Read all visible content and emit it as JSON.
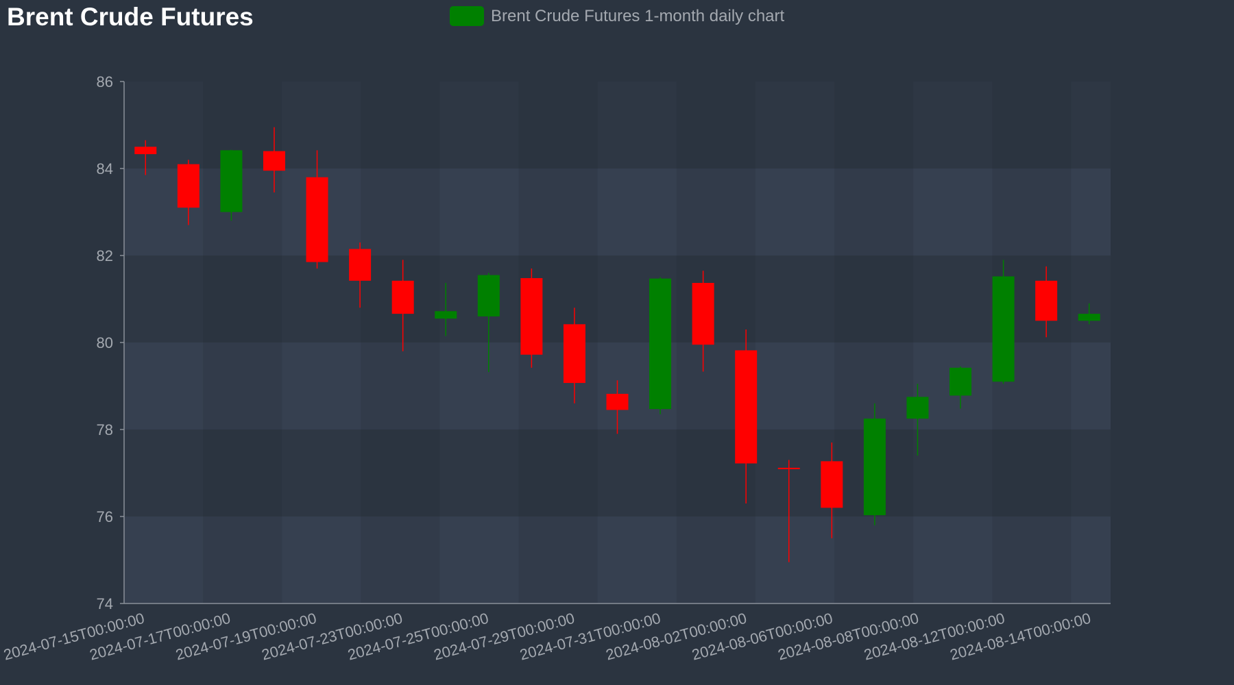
{
  "title": "Brent Crude Futures",
  "legend": {
    "label": "Brent Crude Futures 1-month daily chart",
    "color": "#008000"
  },
  "colors": {
    "background": "#2b3440",
    "up": "#008000",
    "down": "#ff0000",
    "axis_text": "#a4a9b0",
    "axis_line": "#8a9099"
  },
  "chart_data": {
    "type": "candlestick",
    "title": "Brent Crude Futures",
    "series": [
      {
        "name": "Brent Crude Futures 1-month daily chart",
        "points": [
          {
            "date": "2024-07-15",
            "open": 84.5,
            "high": 84.65,
            "low": 83.85,
            "close": 84.33
          },
          {
            "date": "2024-07-16",
            "open": 84.1,
            "high": 84.2,
            "low": 82.7,
            "close": 83.1
          },
          {
            "date": "2024-07-17",
            "open": 83.0,
            "high": 84.43,
            "low": 82.8,
            "close": 84.42
          },
          {
            "date": "2024-07-18",
            "open": 84.4,
            "high": 84.95,
            "low": 83.45,
            "close": 83.95
          },
          {
            "date": "2024-07-19",
            "open": 83.8,
            "high": 84.42,
            "low": 81.7,
            "close": 81.85
          },
          {
            "date": "2024-07-22",
            "open": 82.15,
            "high": 82.3,
            "low": 80.8,
            "close": 81.42
          },
          {
            "date": "2024-07-23",
            "open": 81.42,
            "high": 81.9,
            "low": 79.8,
            "close": 80.66
          },
          {
            "date": "2024-07-24",
            "open": 80.55,
            "high": 81.37,
            "low": 80.15,
            "close": 80.72
          },
          {
            "date": "2024-07-25",
            "open": 80.6,
            "high": 81.6,
            "low": 79.32,
            "close": 81.55
          },
          {
            "date": "2024-07-26",
            "open": 81.48,
            "high": 81.7,
            "low": 79.42,
            "close": 79.72
          },
          {
            "date": "2024-07-29",
            "open": 80.42,
            "high": 80.8,
            "low": 78.6,
            "close": 79.07
          },
          {
            "date": "2024-07-30",
            "open": 78.82,
            "high": 79.13,
            "low": 77.9,
            "close": 78.45
          },
          {
            "date": "2024-07-31",
            "open": 78.47,
            "high": 81.5,
            "low": 78.35,
            "close": 81.47
          },
          {
            "date": "2024-08-01",
            "open": 81.37,
            "high": 81.65,
            "low": 79.33,
            "close": 79.95
          },
          {
            "date": "2024-08-02",
            "open": 79.82,
            "high": 80.3,
            "low": 76.3,
            "close": 77.22
          },
          {
            "date": "2024-08-05",
            "open": 77.12,
            "high": 77.3,
            "low": 74.95,
            "close": 77.1
          },
          {
            "date": "2024-08-06",
            "open": 77.27,
            "high": 77.7,
            "low": 75.5,
            "close": 76.2
          },
          {
            "date": "2024-08-07",
            "open": 76.03,
            "high": 78.6,
            "low": 75.8,
            "close": 78.25
          },
          {
            "date": "2024-08-08",
            "open": 78.25,
            "high": 79.05,
            "low": 77.4,
            "close": 78.75
          },
          {
            "date": "2024-08-09",
            "open": 78.78,
            "high": 79.45,
            "low": 78.48,
            "close": 79.42
          },
          {
            "date": "2024-08-12",
            "open": 79.1,
            "high": 81.9,
            "low": 79.05,
            "close": 81.52
          },
          {
            "date": "2024-08-13",
            "open": 81.42,
            "high": 81.75,
            "low": 80.12,
            "close": 80.5
          },
          {
            "date": "2024-08-14",
            "open": 80.5,
            "high": 80.9,
            "low": 80.42,
            "close": 80.66
          }
        ]
      }
    ],
    "x_tick_labels": [
      "2024-07-15T00:00:00",
      "2024-07-17T00:00:00",
      "2024-07-19T00:00:00",
      "2024-07-23T00:00:00",
      "2024-07-25T00:00:00",
      "2024-07-29T00:00:00",
      "2024-07-31T00:00:00",
      "2024-08-02T00:00:00",
      "2024-08-06T00:00:00",
      "2024-08-08T00:00:00",
      "2024-08-12T00:00:00",
      "2024-08-14T00:00:00"
    ],
    "y_tick_labels": [
      "74",
      "76",
      "78",
      "80",
      "82",
      "84",
      "86"
    ],
    "ylim": [
      74,
      86
    ],
    "grid": true,
    "legend_position": "top-center"
  }
}
